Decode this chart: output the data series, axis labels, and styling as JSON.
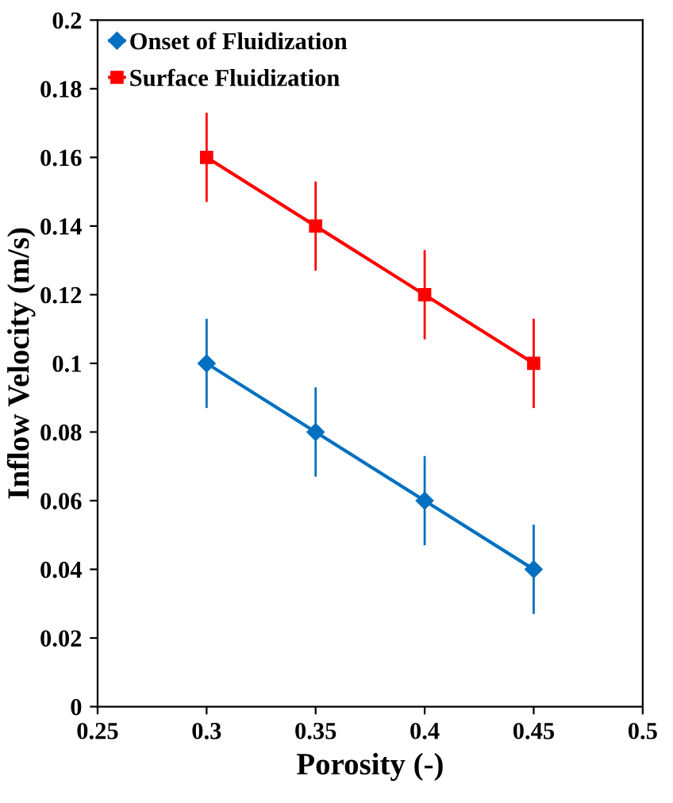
{
  "chart_data": {
    "type": "line",
    "xlabel": "Porosity (-)",
    "ylabel": "Inflow Velocity (m/s)",
    "x": [
      0.3,
      0.35,
      0.4,
      0.45
    ],
    "series": [
      {
        "name": "Onset of Fluidization",
        "color": "#0070c0",
        "marker": "diamond",
        "values": [
          0.1,
          0.08,
          0.06,
          0.04
        ],
        "errors": [
          0.013,
          0.013,
          0.013,
          0.013
        ]
      },
      {
        "name": "Surface Fluidization",
        "color": "#ff0000",
        "marker": "square",
        "values": [
          0.16,
          0.14,
          0.12,
          0.1
        ],
        "errors": [
          0.013,
          0.013,
          0.013,
          0.013
        ]
      }
    ],
    "xlim": [
      0.25,
      0.5
    ],
    "xticks": [
      0.25,
      0.3,
      0.35,
      0.4,
      0.45,
      0.5
    ],
    "ylim": [
      0,
      0.2
    ],
    "yticks": [
      0,
      0.02,
      0.04,
      0.06,
      0.08,
      0.1,
      0.12,
      0.14,
      0.16,
      0.18,
      0.2
    ],
    "grid": false,
    "legend": "top left",
    "line_style": "solid"
  }
}
